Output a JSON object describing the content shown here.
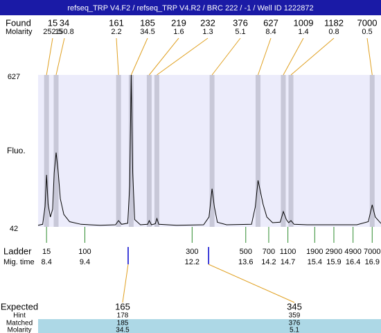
{
  "chart_data": {
    "type": "line",
    "title": "refseq_TRP V4.F2 / refseq_TRP V4.R2 / BRC 222 / -1 / Well ID 1222872",
    "found_label": "Found",
    "molarity_label": "Molarity",
    "y_label": "Fluo.",
    "ladder_label": "Ladder",
    "mig_time_label": "Mig. time",
    "expected_label": "Expected",
    "hint_label": "Hint",
    "matched_label": "Matched",
    "expected_molarity_label": "Molarity",
    "found": {
      "sizes": [
        15,
        34,
        161,
        185,
        219,
        232,
        376,
        627,
        1009,
        1182,
        7000
      ],
      "molarity": [
        252.5,
        150.8,
        2.2,
        34.5,
        1.6,
        1.3,
        5.1,
        8.4,
        1.4,
        0.8,
        0.5
      ],
      "times": [
        8.4,
        8.65,
        10.28,
        10.61,
        11.08,
        11.28,
        12.72,
        13.92,
        14.58,
        14.78,
        16.9
      ]
    },
    "ladder": {
      "sizes": [
        15,
        100,
        300,
        500,
        700,
        1100,
        1900,
        2900,
        4900,
        7000
      ],
      "times": [
        8.4,
        9.4,
        12.2,
        13.6,
        14.2,
        14.7,
        15.4,
        15.9,
        16.4,
        16.9
      ]
    },
    "expected": {
      "sizes": [
        165,
        345
      ],
      "hint": [
        178,
        359
      ],
      "matched": [
        185,
        376
      ],
      "molarity": [
        34.5,
        5.1
      ],
      "times": [
        10.53,
        12.63
      ]
    },
    "x": [
      8.18,
      8.3,
      8.36,
      8.4,
      8.44,
      8.5,
      8.56,
      8.6,
      8.65,
      8.7,
      8.76,
      8.85,
      9.0,
      9.3,
      9.8,
      10.2,
      10.28,
      10.36,
      10.52,
      10.57,
      10.61,
      10.65,
      10.7,
      10.85,
      11.04,
      11.08,
      11.14,
      11.24,
      11.28,
      11.33,
      11.8,
      12.5,
      12.64,
      12.72,
      12.78,
      12.86,
      13.1,
      13.75,
      13.85,
      13.92,
      13.98,
      14.05,
      14.15,
      14.3,
      14.5,
      14.58,
      14.66,
      14.72,
      14.78,
      14.86,
      15.2,
      16.5,
      16.8,
      16.9,
      16.98,
      17.13
    ],
    "y": [
      48,
      52,
      120,
      242,
      130,
      80,
      110,
      250,
      328,
      260,
      150,
      90,
      62,
      52,
      48,
      50,
      66,
      52,
      56,
      200,
      627,
      250,
      70,
      50,
      52,
      66,
      50,
      54,
      74,
      52,
      48,
      50,
      80,
      189,
      120,
      60,
      50,
      52,
      120,
      221,
      180,
      130,
      80,
      58,
      60,
      101,
      70,
      58,
      66,
      52,
      50,
      50,
      62,
      127,
      80,
      55
    ],
    "xlim": [
      8.18,
      17.13
    ],
    "ylim": [
      42,
      627
    ],
    "yticks": [
      42,
      627
    ],
    "color": "#000000",
    "plot_background": "#ececfb",
    "band_color": "#c8c8d8",
    "ladder_color": "#2e8b2e",
    "expected_color": "#0000cc",
    "connector_color": "#e0a020",
    "title_background": "#1a1aa6",
    "highlight_color": "#add8e6"
  }
}
